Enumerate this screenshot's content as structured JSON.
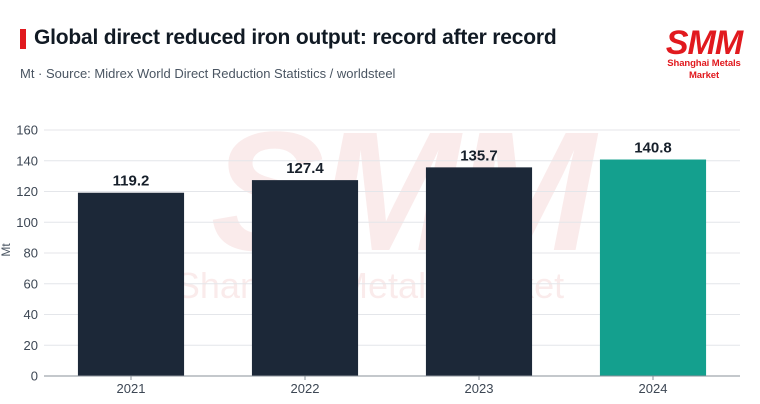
{
  "header": {
    "title": "Global direct reduced iron output: record after record",
    "subtitle": "Mt · Source: Midrex World Direct Reduction Statistics / worldsteel"
  },
  "logo": {
    "mark": "SMM",
    "subtitle": "Shanghai Metals Market"
  },
  "watermark": {
    "mark": "SMM",
    "text": "Shanghai Metals Market"
  },
  "colors": {
    "accent": "#e1191e",
    "bar": "#1c2838",
    "highlight": "#14a08e",
    "grid": "#e4e6ea",
    "axis": "#8a9099",
    "watermark": "#f6dcdc"
  },
  "chart_data": {
    "type": "bar",
    "categories": [
      "2021",
      "2022",
      "2023",
      "2024"
    ],
    "values": [
      119.2,
      127.4,
      135.7,
      140.8
    ],
    "data_labels": [
      "119.2",
      "127.4",
      "135.7",
      "140.8"
    ],
    "highlight_index": 3,
    "ylabel": "Mt",
    "ylim": [
      0,
      160
    ],
    "yticks": [
      0,
      20,
      40,
      60,
      80,
      100,
      120,
      140,
      160
    ],
    "grid": true,
    "legend": "none"
  }
}
